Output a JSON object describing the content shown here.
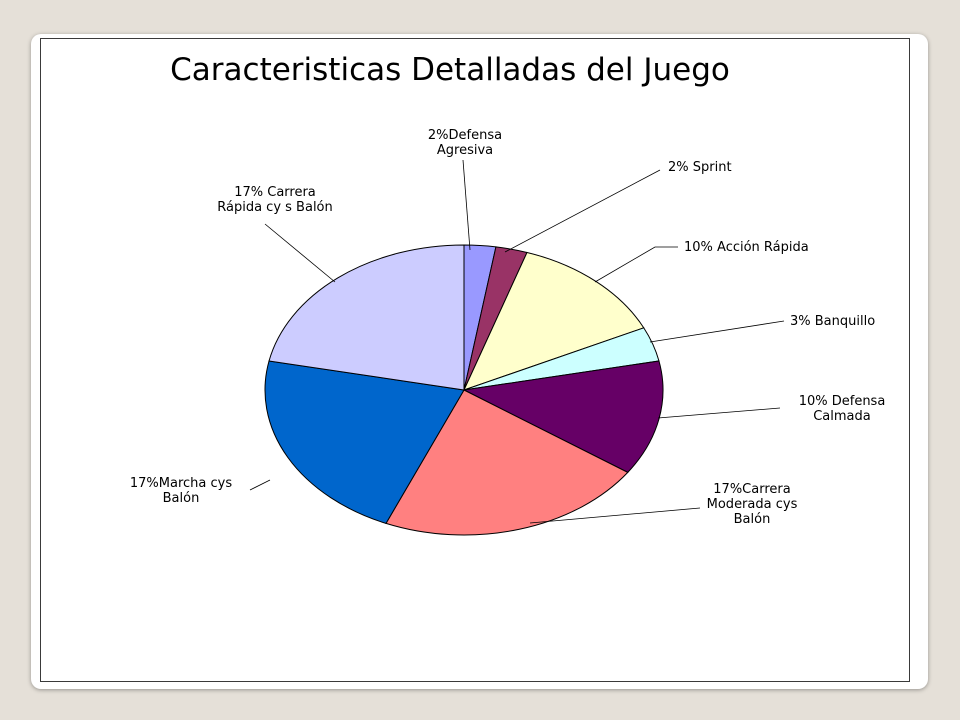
{
  "chart_data": {
    "type": "pie",
    "title": "Caracteristicas Detalladas del Juego",
    "slices": [
      {
        "label_lines": [
          "2%Defensa",
          "Agresiva"
        ],
        "value": 2,
        "color": "#9999ff"
      },
      {
        "label_lines": [
          "2% Sprint"
        ],
        "value": 2,
        "color": "#993366"
      },
      {
        "label_lines": [
          "10% Acción Rápida"
        ],
        "value": 10,
        "color": "#ffffcc"
      },
      {
        "label_lines": [
          "3% Banquillo"
        ],
        "value": 3,
        "color": "#ccffff"
      },
      {
        "label_lines": [
          "10% Defensa",
          "Calmada"
        ],
        "value": 10,
        "color": "#660066"
      },
      {
        "label_lines": [
          "17%Carrera",
          "Moderada cys",
          "Balón"
        ],
        "value": 17,
        "color": "#ff8080"
      },
      {
        "label_lines": [
          "17%Marcha cys",
          "Balón"
        ],
        "value": 17,
        "color": "#0066cc"
      },
      {
        "label_lines": [
          "17% Carrera",
          "Rápida cy s Balón"
        ],
        "value": 17,
        "color": "#ccccff"
      }
    ]
  }
}
